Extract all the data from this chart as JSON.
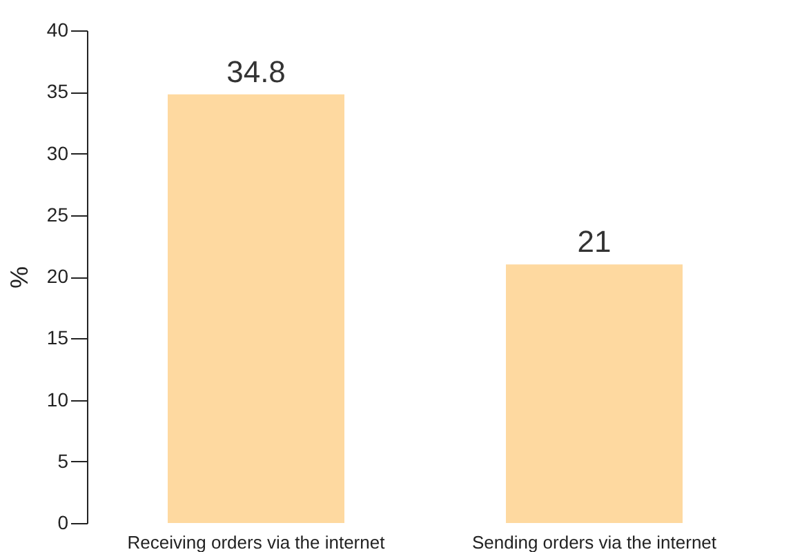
{
  "chart_data": {
    "type": "bar",
    "ylabel": "%",
    "categories": [
      "Receiving orders via the internet",
      "Sending orders via the internet"
    ],
    "values": [
      34.8,
      21
    ],
    "color": "#fed9a0",
    "ylim": [
      0,
      40
    ],
    "yticks": [
      0,
      5,
      10,
      15,
      20,
      25,
      30,
      35,
      40
    ],
    "grid": false,
    "data_labels": true
  }
}
